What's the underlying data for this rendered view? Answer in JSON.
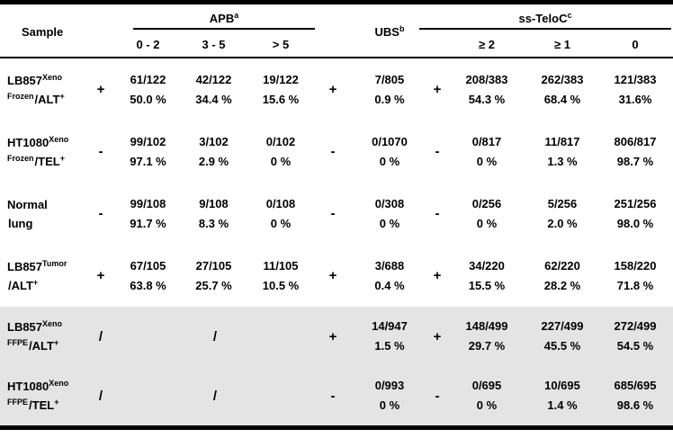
{
  "colors": {
    "shaded_row_bg": "#e4e4e4",
    "rule": "#000000",
    "background": "#ffffff",
    "text": "#000000"
  },
  "header": {
    "sample_label": "Sample",
    "apb": {
      "label": "APB",
      "sup": "a",
      "subcols": [
        "0 - 2",
        "3 - 5",
        "> 5"
      ]
    },
    "ubs": {
      "label": "UBS",
      "sup": "b"
    },
    "telo": {
      "label": "ss-TeloC",
      "sup": "c",
      "subcols": [
        "≥ 2",
        "≥ 1",
        "0"
      ]
    }
  },
  "rows": [
    {
      "name": {
        "line1": "LB857",
        "line1_sup": "Xeno",
        "line2_pre": "Frozen",
        "line2": "/ALT",
        "line2_sup": "+"
      },
      "apb_sign": "+",
      "apb": [
        {
          "count": "61/122",
          "pct": "50.0 %"
        },
        {
          "count": "42/122",
          "pct": "34.4 %"
        },
        {
          "count": "19/122",
          "pct": "15.6 %"
        }
      ],
      "ubs_sign": "+",
      "ubs": {
        "count": "7/805",
        "pct": "0.9 %"
      },
      "telo_sign": "+",
      "telo": [
        {
          "count": "208/383",
          "pct": "54.3 %"
        },
        {
          "count": "262/383",
          "pct": "68.4 %"
        },
        {
          "count": "121/383",
          "pct": "31.6%"
        }
      ]
    },
    {
      "name": {
        "line1": "HT1080",
        "line1_sup": "Xeno",
        "line2_pre": "Frozen",
        "line2": "/TEL",
        "line2_sup": "+"
      },
      "apb_sign": "-",
      "apb": [
        {
          "count": "99/102",
          "pct": "97.1 %"
        },
        {
          "count": "3/102",
          "pct": "2.9 %"
        },
        {
          "count": "0/102",
          "pct": "0 %"
        }
      ],
      "ubs_sign": "-",
      "ubs": {
        "count": "0/1070",
        "pct": "0 %"
      },
      "telo_sign": "-",
      "telo": [
        {
          "count": "0/817",
          "pct": "0 %"
        },
        {
          "count": "11/817",
          "pct": "1.3 %"
        },
        {
          "count": "806/817",
          "pct": "98.7 %"
        }
      ]
    },
    {
      "name": {
        "line1": "Normal",
        "line1_sup": "",
        "line2_pre": "",
        "line2": "lung",
        "line2_sup": ""
      },
      "apb_sign": "-",
      "apb": [
        {
          "count": "99/108",
          "pct": "91.7 %"
        },
        {
          "count": "9/108",
          "pct": "8.3 %"
        },
        {
          "count": "0/108",
          "pct": "0 %"
        }
      ],
      "ubs_sign": "-",
      "ubs": {
        "count": "0/308",
        "pct": "0 %"
      },
      "telo_sign": "-",
      "telo": [
        {
          "count": "0/256",
          "pct": "0 %"
        },
        {
          "count": "5/256",
          "pct": "2.0 %"
        },
        {
          "count": "251/256",
          "pct": "98.0 %"
        }
      ]
    },
    {
      "name": {
        "line1": "LB857",
        "line1_sup": "Tumor",
        "line2_pre": "",
        "line2": "/ALT",
        "line2_sup": "+"
      },
      "apb_sign": "+",
      "apb": [
        {
          "count": "67/105",
          "pct": "63.8 %"
        },
        {
          "count": "27/105",
          "pct": "25.7 %"
        },
        {
          "count": "11/105",
          "pct": "10.5 %"
        }
      ],
      "ubs_sign": "+",
      "ubs": {
        "count": "3/688",
        "pct": "0.4 %"
      },
      "telo_sign": "+",
      "telo": [
        {
          "count": "34/220",
          "pct": "15.5 %"
        },
        {
          "count": "62/220",
          "pct": "28.2 %"
        },
        {
          "count": "158/220",
          "pct": "71.8 %"
        }
      ]
    },
    {
      "name": {
        "line1": "LB857",
        "line1_sup": "Xeno",
        "line2_pre": "FFPE",
        "line2": "/ALT",
        "line2_sup": "+"
      },
      "apb_sign": "/",
      "apb_merged": "/",
      "ubs_sign": "+",
      "ubs": {
        "count": "14/947",
        "pct": "1.5 %"
      },
      "telo_sign": "+",
      "telo": [
        {
          "count": "148/499",
          "pct": "29.7 %"
        },
        {
          "count": "227/499",
          "pct": "45.5 %"
        },
        {
          "count": "272/499",
          "pct": "54.5 %"
        }
      ]
    },
    {
      "name": {
        "line1": "HT1080",
        "line1_sup": "Xeno",
        "line2_pre": "FFPE",
        "line2": "/TEL",
        "line2_sup": "+"
      },
      "apb_sign": "/",
      "apb_merged": "/",
      "ubs_sign": "-",
      "ubs": {
        "count": "0/993",
        "pct": "0 %"
      },
      "telo_sign": "-",
      "telo": [
        {
          "count": "0/695",
          "pct": "0 %"
        },
        {
          "count": "10/695",
          "pct": "1.4 %"
        },
        {
          "count": "685/695",
          "pct": "98.6 %"
        }
      ]
    }
  ]
}
